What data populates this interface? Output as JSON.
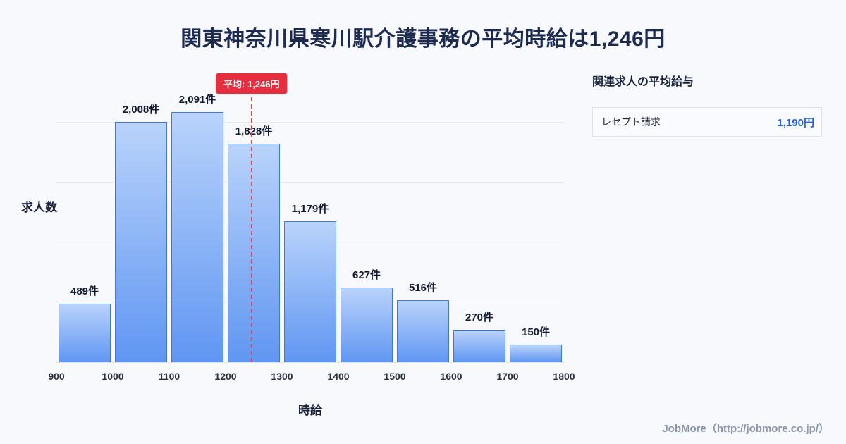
{
  "title": "関東神奈川県寒川駅介護事務の平均時給は1,246円",
  "chart_data": {
    "type": "bar",
    "title": "関東神奈川県寒川駅介護事務の平均時給は1,246円",
    "xlabel": "時給",
    "ylabel": "求人数",
    "x_range": [
      900,
      1800
    ],
    "ylim": [
      0,
      2456
    ],
    "grid": true,
    "tick_labels": [
      "900",
      "1000",
      "1100",
      "1200",
      "1300",
      "1400",
      "1500",
      "1600",
      "1700",
      "1800"
    ],
    "categories": [
      "900-1000",
      "1000-1100",
      "1100-1200",
      "1200-1300",
      "1300-1400",
      "1400-1500",
      "1500-1600",
      "1600-1700",
      "1700-1800"
    ],
    "values": [
      489,
      2008,
      2091,
      1828,
      1179,
      627,
      516,
      270,
      150
    ],
    "value_labels": [
      "489件",
      "2,008件",
      "2,091件",
      "1,828件",
      "1,179件",
      "627件",
      "516件",
      "270件",
      "150件"
    ],
    "gridline_values": [
      500,
      1000,
      1500,
      2000,
      2456
    ],
    "average": {
      "value": 1246,
      "label": "平均: 1,246円"
    }
  },
  "side_panel": {
    "title": "関連求人の平均給与",
    "rows": [
      {
        "label": "レセプト請求",
        "value": "1,190円"
      }
    ]
  },
  "footer": {
    "credit": "JobMore（http://jobmore.co.jp/）"
  },
  "colors": {
    "background": "#f7f9fd",
    "title_text": "#1d2b50",
    "bar_gradient_top": "#b9d3fb",
    "bar_gradient_bottom": "#6096f2",
    "bar_border": "#3f76dc",
    "average_red": "#e62e3e",
    "value_blue": "#2160e0"
  }
}
